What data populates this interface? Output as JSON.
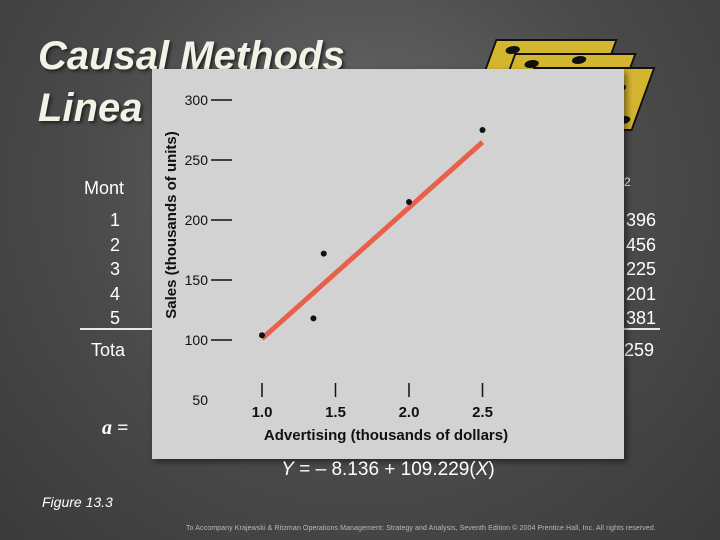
{
  "title": {
    "line1": "Causal Methods",
    "line2": "Linea"
  },
  "table": {
    "month_header": "Mont",
    "months": [
      "1",
      "2",
      "3",
      "4",
      "5"
    ],
    "total_label": "Tota",
    "partial_col_header": "2",
    "partial_col_values": [
      "396",
      "456",
      "225",
      "201",
      "381"
    ],
    "partial_total": "259"
  },
  "a_equation": "a =",
  "equation": {
    "y": "Y",
    "body": " = – 8.136 + 109.229(",
    "x": "X",
    "end": ")"
  },
  "figure_label": "Figure 13.3",
  "footer": "To Accompany Krajewski & Ritzman Operations Management: Strategy and Analysis, Seventh Edition © 2004 Prentice Hall, Inc. All rights reserved.",
  "chart_data": {
    "type": "scatter",
    "xlabel": "Advertising (thousands of dollars)",
    "ylabel": "Sales (thousands of units)",
    "xlim": [
      0.8,
      2.6
    ],
    "ylim": [
      50,
      300
    ],
    "x_ticks": [
      "1.0",
      "1.5",
      "2.0",
      "2.5"
    ],
    "x_tick_values": [
      1.0,
      1.5,
      2.0,
      2.5
    ],
    "y_ticks": [
      "300",
      "250",
      "200",
      "150",
      "100",
      "50"
    ],
    "y_tick_values": [
      300,
      250,
      200,
      150,
      100,
      50
    ],
    "points": [
      {
        "x": 1.0,
        "y": 104
      },
      {
        "x": 1.35,
        "y": 118
      },
      {
        "x": 1.42,
        "y": 172
      },
      {
        "x": 2.0,
        "y": 215
      },
      {
        "x": 2.5,
        "y": 275
      }
    ],
    "regression": {
      "intercept": -8.136,
      "slope": 109.229,
      "x_range": [
        1.0,
        2.5
      ],
      "color": "#e8604a"
    },
    "point_color": "#111111"
  }
}
